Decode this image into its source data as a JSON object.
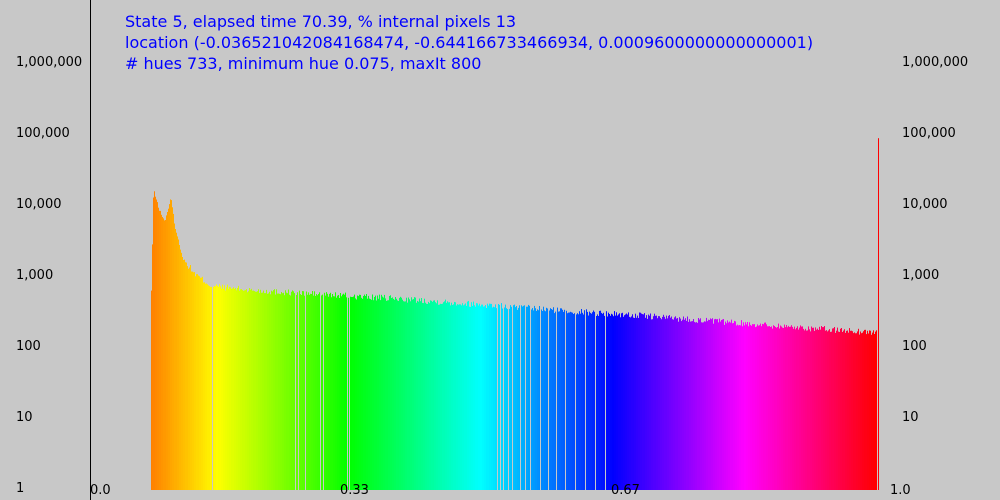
{
  "header": {
    "line1": "State 5, elapsed time 70.39, % internal pixels 13",
    "line2": "location (-0.036521042084168474, -0.644166733466934, 0.0009600000000000001)",
    "line3": "# hues 733, minimum hue 0.075, maxIt 800"
  },
  "chart_data": {
    "type": "bar",
    "title": "",
    "xlabel": "",
    "ylabel": "",
    "y_scale": "log",
    "xlim": [
      0.0,
      1.0
    ],
    "ylim": [
      1,
      10000000
    ],
    "x_ticks": [
      "0.0",
      "0.33",
      "0.67",
      "1.0"
    ],
    "x_tick_values": [
      0.0,
      0.33,
      0.67,
      1.0
    ],
    "y_ticks_left": [
      "1",
      "10",
      "100",
      "1,000",
      "10,000",
      "100,000",
      "1,000,000"
    ],
    "y_ticks_right": [
      "10",
      "100",
      "1,000",
      "10,000",
      "100,000",
      "1,000,000"
    ],
    "y_tick_values": [
      1,
      10,
      100,
      1000,
      10000,
      100000,
      1000000
    ],
    "grid": false,
    "bar_color": "hue of x (orange to red across the spectrum)",
    "envelope": {
      "x": [
        0.075,
        0.078,
        0.085,
        0.092,
        0.1,
        0.105,
        0.115,
        0.13,
        0.15,
        0.2,
        0.3,
        0.4,
        0.5,
        0.6,
        0.7,
        0.8,
        0.9,
        0.985,
        0.99
      ],
      "count": [
        450,
        17000,
        9000,
        6000,
        13000,
        5000,
        1800,
        1100,
        750,
        650,
        560,
        480,
        400,
        330,
        280,
        230,
        190,
        165,
        90000
      ]
    }
  }
}
